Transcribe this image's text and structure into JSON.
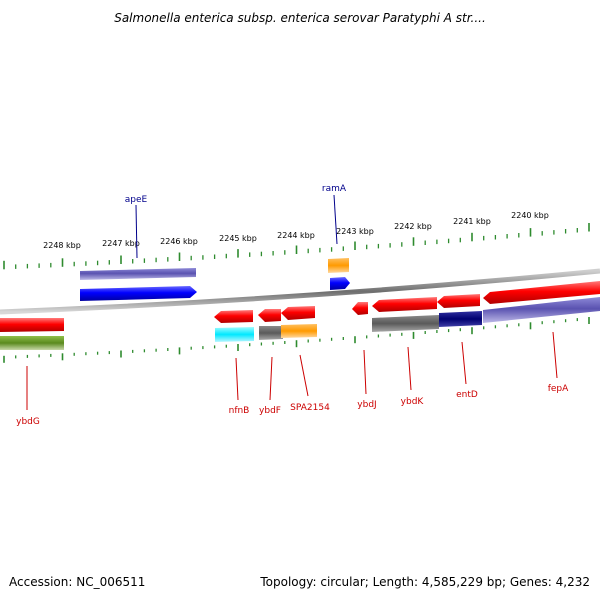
{
  "title": "Salmonella enterica subsp. enterica serovar Paratyphi A str....",
  "footer": {
    "accession": "Accession: NC_006511",
    "topology": "Topology: circular; Length: 4,585,229 bp; Genes: 4,232"
  },
  "colors": {
    "backbone": "#7a7a7a",
    "tick": "#2e8b2e",
    "top_label": "#00008b",
    "bottom_label": "#cc0000"
  },
  "ticks": [
    "2248 kbp",
    "2247 kbp",
    "2246 kbp",
    "2245 kbp",
    "2244 kbp",
    "2243 kbp",
    "2242 kbp",
    "2241 kbp",
    "2240 kbp"
  ],
  "genes_top": [
    {
      "name": "apeE"
    },
    {
      "name": "ramA"
    }
  ],
  "genes_bottom": [
    {
      "name": "ybdG"
    },
    {
      "name": "nfnB"
    },
    {
      "name": "ybdF"
    },
    {
      "name": "SPA2154"
    },
    {
      "name": "ybdJ"
    },
    {
      "name": "ybdK"
    },
    {
      "name": "entD"
    },
    {
      "name": "fepA"
    }
  ]
}
